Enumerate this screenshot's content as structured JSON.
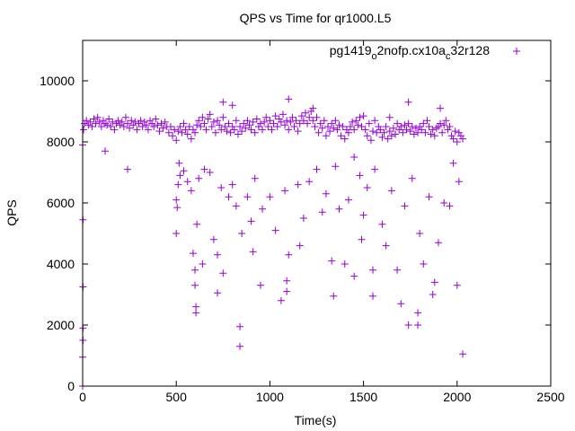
{
  "chart_data": {
    "type": "scatter",
    "title": "QPS vs Time for qr1000.L5",
    "xlabel": "Time(s)",
    "ylabel": "QPS",
    "xlim": [
      0,
      2500
    ],
    "ylim": [
      0,
      11300
    ],
    "xticks": [
      0,
      500,
      1000,
      1500,
      2000,
      2500
    ],
    "yticks": [
      0,
      2000,
      4000,
      6000,
      8000,
      10000
    ],
    "xtick_labels": [
      "0",
      "500",
      "1000",
      "1500",
      "2000",
      "2500"
    ],
    "ytick_labels": [
      "0",
      "2000",
      "4000",
      "6000",
      "8000",
      "10000"
    ],
    "grid": false,
    "legend_position": "top-right",
    "series": [
      {
        "name": "pg1419_o2nofp.cx10a_c32r128",
        "legend": {
          "base1": "pg1419",
          "sub1": "o",
          "mid": "2nofp.cx10a",
          "sub2": "c",
          "end": "32r128"
        },
        "color": "#9400d3",
        "marker": "plus",
        "points": [
          [
            0,
            7900
          ],
          [
            5,
            8400
          ],
          [
            10,
            8600
          ],
          [
            20,
            8700
          ],
          [
            30,
            8550
          ],
          [
            40,
            8650
          ],
          [
            50,
            8500
          ],
          [
            60,
            8750
          ],
          [
            70,
            8600
          ],
          [
            80,
            8800
          ],
          [
            90,
            8650
          ],
          [
            100,
            8500
          ],
          [
            110,
            8700
          ],
          [
            120,
            8600
          ],
          [
            130,
            8550
          ],
          [
            140,
            8750
          ],
          [
            150,
            8500
          ],
          [
            160,
            8650
          ],
          [
            170,
            8400
          ],
          [
            180,
            8600
          ],
          [
            190,
            8700
          ],
          [
            200,
            8550
          ],
          [
            210,
            8650
          ],
          [
            220,
            8500
          ],
          [
            230,
            8800
          ],
          [
            240,
            8600
          ],
          [
            250,
            8450
          ],
          [
            260,
            8700
          ],
          [
            270,
            8550
          ],
          [
            280,
            8650
          ],
          [
            290,
            8400
          ],
          [
            300,
            8600
          ],
          [
            310,
            8700
          ],
          [
            320,
            8500
          ],
          [
            330,
            8650
          ],
          [
            340,
            8550
          ],
          [
            350,
            8400
          ],
          [
            360,
            8700
          ],
          [
            370,
            8600
          ],
          [
            380,
            8500
          ],
          [
            390,
            8750
          ],
          [
            400,
            8550
          ],
          [
            410,
            8350
          ],
          [
            420,
            8600
          ],
          [
            430,
            8450
          ],
          [
            440,
            8650
          ],
          [
            450,
            8500
          ],
          [
            460,
            8300
          ],
          [
            470,
            8500
          ],
          [
            480,
            8200
          ],
          [
            490,
            8400
          ],
          [
            500,
            8050
          ],
          [
            510,
            8350
          ],
          [
            520,
            8500
          ],
          [
            530,
            8300
          ],
          [
            540,
            8600
          ],
          [
            550,
            8400
          ],
          [
            560,
            8250
          ],
          [
            570,
            8500
          ],
          [
            580,
            8100
          ],
          [
            590,
            8400
          ],
          [
            600,
            8300
          ],
          [
            610,
            8550
          ],
          [
            620,
            8700
          ],
          [
            630,
            8500
          ],
          [
            640,
            8800
          ],
          [
            650,
            8600
          ],
          [
            660,
            8400
          ],
          [
            670,
            8750
          ],
          [
            680,
            8900
          ],
          [
            690,
            8500
          ],
          [
            700,
            8650
          ],
          [
            710,
            8300
          ],
          [
            720,
            8700
          ],
          [
            730,
            8550
          ],
          [
            740,
            8400
          ],
          [
            750,
            8800
          ],
          [
            760,
            8500
          ],
          [
            770,
            8350
          ],
          [
            780,
            8600
          ],
          [
            790,
            8300
          ],
          [
            800,
            8500
          ],
          [
            810,
            8400
          ],
          [
            820,
            8700
          ],
          [
            830,
            8250
          ],
          [
            840,
            8500
          ],
          [
            850,
            8350
          ],
          [
            860,
            8600
          ],
          [
            870,
            8450
          ],
          [
            880,
            8700
          ],
          [
            890,
            8550
          ],
          [
            900,
            8400
          ],
          [
            910,
            8650
          ],
          [
            920,
            8300
          ],
          [
            930,
            8750
          ],
          [
            940,
            8500
          ],
          [
            950,
            8600
          ],
          [
            960,
            8400
          ],
          [
            970,
            8650
          ],
          [
            980,
            8800
          ],
          [
            990,
            8500
          ],
          [
            1000,
            8700
          ],
          [
            1010,
            8400
          ],
          [
            1020,
            8600
          ],
          [
            1030,
            8850
          ],
          [
            1040,
            8500
          ],
          [
            1050,
            8750
          ],
          [
            1060,
            8650
          ],
          [
            1070,
            8900
          ],
          [
            1080,
            8550
          ],
          [
            1090,
            8700
          ],
          [
            1100,
            8400
          ],
          [
            1110,
            8650
          ],
          [
            1120,
            8800
          ],
          [
            1130,
            8500
          ],
          [
            1140,
            8700
          ],
          [
            1150,
            8350
          ],
          [
            1160,
            8600
          ],
          [
            1170,
            8850
          ],
          [
            1180,
            8700
          ],
          [
            1190,
            8950
          ],
          [
            1200,
            8600
          ],
          [
            1210,
            8800
          ],
          [
            1220,
            9000
          ],
          [
            1230,
            8700
          ],
          [
            1240,
            8500
          ],
          [
            1250,
            8800
          ],
          [
            1260,
            8300
          ],
          [
            1270,
            8600
          ],
          [
            1280,
            8450
          ],
          [
            1290,
            8700
          ],
          [
            1300,
            8200
          ],
          [
            1310,
            8500
          ],
          [
            1320,
            8350
          ],
          [
            1330,
            8600
          ],
          [
            1340,
            8450
          ],
          [
            1350,
            8700
          ],
          [
            1360,
            8400
          ],
          [
            1370,
            8550
          ],
          [
            1380,
            8200
          ],
          [
            1390,
            8500
          ],
          [
            1400,
            8100
          ],
          [
            1410,
            8400
          ],
          [
            1420,
            8300
          ],
          [
            1430,
            8500
          ],
          [
            1440,
            8650
          ],
          [
            1450,
            8400
          ],
          [
            1460,
            8700
          ],
          [
            1470,
            8550
          ],
          [
            1480,
            8800
          ],
          [
            1490,
            8500
          ],
          [
            1500,
            8850
          ],
          [
            1510,
            8400
          ],
          [
            1520,
            8200
          ],
          [
            1530,
            8600
          ],
          [
            1540,
            8050
          ],
          [
            1550,
            8350
          ],
          [
            1560,
            8700
          ],
          [
            1570,
            8300
          ],
          [
            1580,
            8500
          ],
          [
            1590,
            8400
          ],
          [
            1600,
            8150
          ],
          [
            1610,
            8300
          ],
          [
            1620,
            8500
          ],
          [
            1630,
            8100
          ],
          [
            1640,
            8350
          ],
          [
            1650,
            8200
          ],
          [
            1660,
            8450
          ],
          [
            1670,
            8250
          ],
          [
            1680,
            8600
          ],
          [
            1690,
            8400
          ],
          [
            1700,
            8500
          ],
          [
            1710,
            8300
          ],
          [
            1720,
            8550
          ],
          [
            1730,
            8400
          ],
          [
            1740,
            8600
          ],
          [
            1750,
            8350
          ],
          [
            1760,
            8500
          ],
          [
            1770,
            8250
          ],
          [
            1780,
            8450
          ],
          [
            1790,
            8300
          ],
          [
            1800,
            8500
          ],
          [
            1810,
            8400
          ],
          [
            1820,
            8600
          ],
          [
            1830,
            8300
          ],
          [
            1840,
            8700
          ],
          [
            1850,
            8500
          ],
          [
            1860,
            8250
          ],
          [
            1870,
            8400
          ],
          [
            1880,
            8200
          ],
          [
            1890,
            8450
          ],
          [
            1900,
            8500
          ],
          [
            1910,
            8600
          ],
          [
            1920,
            8300
          ],
          [
            1930,
            8550
          ],
          [
            1940,
            8700
          ],
          [
            1950,
            8400
          ],
          [
            1960,
            8500
          ],
          [
            1970,
            8200
          ],
          [
            1980,
            8100
          ],
          [
            1990,
            8350
          ],
          [
            2000,
            8000
          ],
          [
            2010,
            8300
          ],
          [
            2020,
            8200
          ],
          [
            2030,
            8100
          ],
          [
            2,
            5450
          ],
          [
            2,
            3250
          ],
          [
            2,
            1900
          ],
          [
            2,
            1500
          ],
          [
            0,
            950
          ],
          [
            0,
            0
          ],
          [
            120,
            7700
          ],
          [
            240,
            7100
          ],
          [
            500,
            6100
          ],
          [
            500,
            5000
          ],
          [
            505,
            5850
          ],
          [
            510,
            6600
          ],
          [
            515,
            7300
          ],
          [
            520,
            6900
          ],
          [
            540,
            7050
          ],
          [
            560,
            6700
          ],
          [
            580,
            6400
          ],
          [
            590,
            4350
          ],
          [
            600,
            3800
          ],
          [
            600,
            3300
          ],
          [
            605,
            2600
          ],
          [
            605,
            2400
          ],
          [
            610,
            5300
          ],
          [
            620,
            6800
          ],
          [
            640,
            4000
          ],
          [
            650,
            7100
          ],
          [
            680,
            7000
          ],
          [
            700,
            4800
          ],
          [
            720,
            4300
          ],
          [
            720,
            3050
          ],
          [
            740,
            6500
          ],
          [
            750,
            3700
          ],
          [
            780,
            6200
          ],
          [
            800,
            6600
          ],
          [
            820,
            5900
          ],
          [
            840,
            1950
          ],
          [
            840,
            1300
          ],
          [
            850,
            5000
          ],
          [
            880,
            6200
          ],
          [
            900,
            5400
          ],
          [
            910,
            4400
          ],
          [
            920,
            6800
          ],
          [
            950,
            3300
          ],
          [
            960,
            5800
          ],
          [
            1000,
            6200
          ],
          [
            1030,
            5100
          ],
          [
            1060,
            2800
          ],
          [
            1080,
            6400
          ],
          [
            1090,
            3450
          ],
          [
            1090,
            3100
          ],
          [
            1100,
            4300
          ],
          [
            1150,
            6600
          ],
          [
            1160,
            4600
          ],
          [
            1180,
            5500
          ],
          [
            1210,
            6700
          ],
          [
            1250,
            7100
          ],
          [
            1280,
            5700
          ],
          [
            1300,
            6300
          ],
          [
            1330,
            4100
          ],
          [
            1350,
            7200
          ],
          [
            1370,
            5800
          ],
          [
            1400,
            4000
          ],
          [
            1420,
            6100
          ],
          [
            1450,
            3600
          ],
          [
            1480,
            6900
          ],
          [
            1490,
            4800
          ],
          [
            1500,
            5600
          ],
          [
            1520,
            6500
          ],
          [
            1550,
            3800
          ],
          [
            1560,
            7100
          ],
          [
            1600,
            5300
          ],
          [
            1620,
            4600
          ],
          [
            1650,
            6400
          ],
          [
            1680,
            3800
          ],
          [
            1700,
            2700
          ],
          [
            1720,
            5900
          ],
          [
            1740,
            2000
          ],
          [
            1760,
            6800
          ],
          [
            1790,
            2000
          ],
          [
            1790,
            2400
          ],
          [
            1800,
            5000
          ],
          [
            1820,
            4000
          ],
          [
            1850,
            6200
          ],
          [
            1870,
            3000
          ],
          [
            1880,
            3400
          ],
          [
            1900,
            4700
          ],
          [
            1930,
            6000
          ],
          [
            1960,
            5900
          ],
          [
            2000,
            3300
          ],
          [
            2010,
            6700
          ],
          [
            2030,
            1050
          ],
          [
            1980,
            7300
          ],
          [
            1550,
            2950
          ],
          [
            1450,
            7500
          ],
          [
            1340,
            2950
          ],
          [
            1100,
            9400
          ],
          [
            1230,
            9100
          ],
          [
            800,
            9200
          ],
          [
            750,
            9300
          ],
          [
            1640,
            8800
          ],
          [
            1910,
            9100
          ],
          [
            1740,
            9300
          ]
        ]
      }
    ]
  }
}
